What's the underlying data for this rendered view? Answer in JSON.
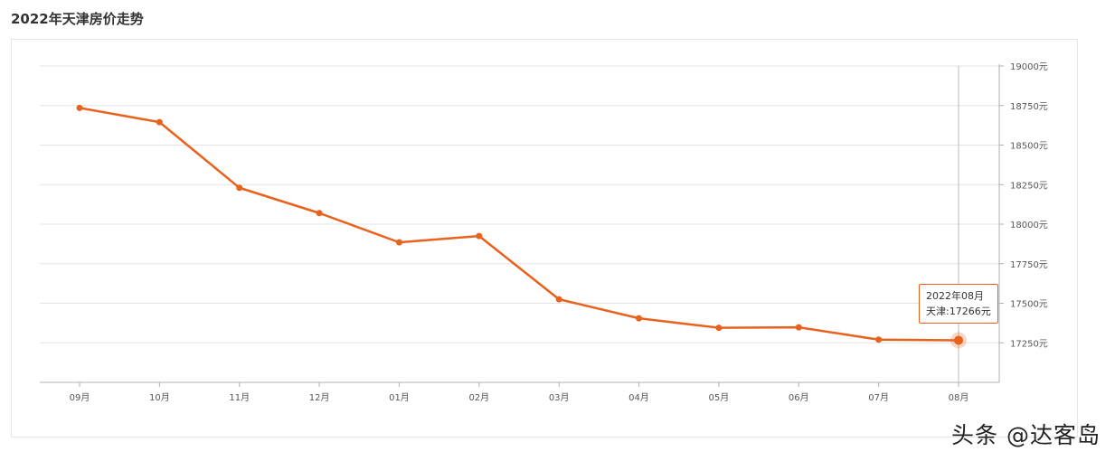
{
  "header": {
    "title": "2022年天津房价走势"
  },
  "colors": {
    "line": "#e8621c",
    "grid": "#e3e3e3",
    "axis": "#b0b0b0",
    "crosshair": "#b8b8b8"
  },
  "tooltip": {
    "date": "2022年08月",
    "series_label": "天津",
    "value_text": "17266元"
  },
  "watermark": {
    "text": "头条 @达客岛"
  },
  "chart_data": {
    "type": "line",
    "categories": [
      "09月",
      "10月",
      "11月",
      "12月",
      "01月",
      "02月",
      "03月",
      "04月",
      "05月",
      "06月",
      "07月",
      "08月"
    ],
    "series": [
      {
        "name": "天津",
        "values": [
          18735,
          18645,
          18230,
          18070,
          17885,
          17925,
          17525,
          17405,
          17345,
          17348,
          17270,
          17266
        ]
      }
    ],
    "y_ticks": [
      17250,
      17500,
      17750,
      18000,
      18250,
      18500,
      18750,
      19000
    ],
    "y_tick_suffix": "元",
    "ylim": [
      17000,
      19000
    ],
    "y_axis_side": "right",
    "grid": true,
    "highlight_index": 11
  }
}
